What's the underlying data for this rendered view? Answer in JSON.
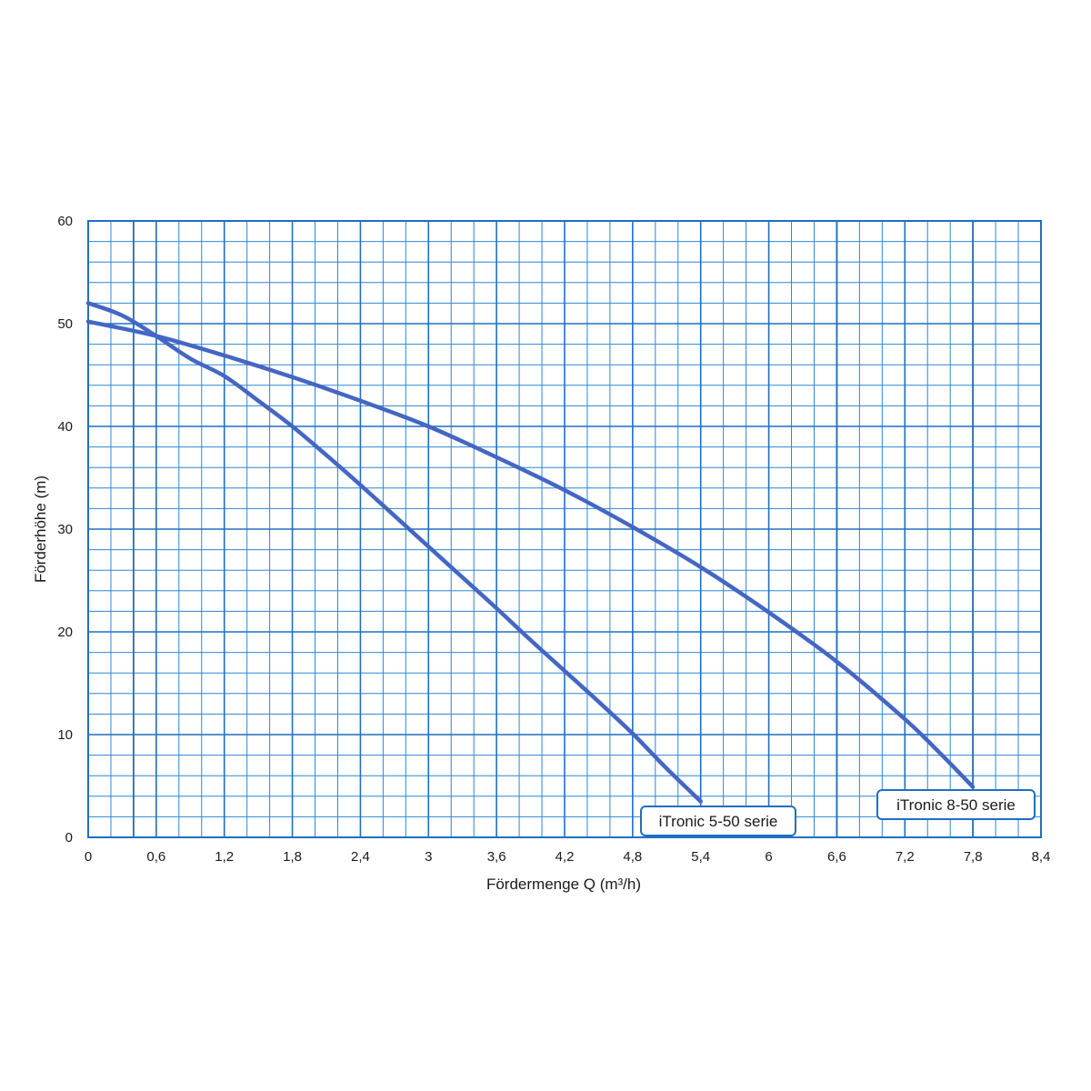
{
  "chart_data": {
    "type": "line",
    "title": "",
    "xlabel": "Fördermenge Q (m³/h)",
    "ylabel": "Förderhöhe (m)",
    "xlim": [
      0,
      8.4
    ],
    "ylim": [
      0,
      60
    ],
    "grid": true,
    "x_ticks": [
      "0",
      "0,6",
      "1,2",
      "1,8",
      "2,4",
      "3",
      "3,6",
      "4,2",
      "4,8",
      "5,4",
      "6",
      "6,6",
      "7,2",
      "7,8",
      "8,4"
    ],
    "y_ticks": [
      "0",
      "10",
      "20",
      "30",
      "40",
      "50",
      "60"
    ],
    "colors": {
      "grid_major": "#1f6fc0",
      "grid_minor": "#2c86d6",
      "curve": "#4466c4",
      "label_border": "#1f6fc0"
    },
    "series": [
      {
        "name": "iTronic 5-50 serie",
        "x": [
          0,
          0.3,
          0.6,
          0.9,
          1.2,
          1.5,
          1.8,
          2.1,
          2.4,
          2.7,
          3.0,
          3.3,
          3.6,
          3.9,
          4.2,
          4.5,
          4.8,
          5.1,
          5.4
        ],
        "y": [
          52,
          50.8,
          48.8,
          46.6,
          44.9,
          42.5,
          40,
          37.2,
          34.3,
          31.3,
          28.3,
          25.3,
          22.3,
          19.2,
          16.2,
          13.2,
          10.1,
          6.7,
          3.5
        ]
      },
      {
        "name": "iTronic 8-50 serie",
        "x": [
          0,
          0.6,
          1.2,
          1.8,
          2.4,
          3.0,
          3.6,
          4.2,
          4.8,
          5.4,
          6.0,
          6.6,
          7.2,
          7.5,
          7.8
        ],
        "y": [
          50.2,
          48.8,
          46.9,
          44.8,
          42.5,
          40,
          37,
          33.8,
          30.2,
          26.3,
          21.9,
          17.1,
          11.5,
          8.3,
          4.9
        ]
      }
    ]
  }
}
